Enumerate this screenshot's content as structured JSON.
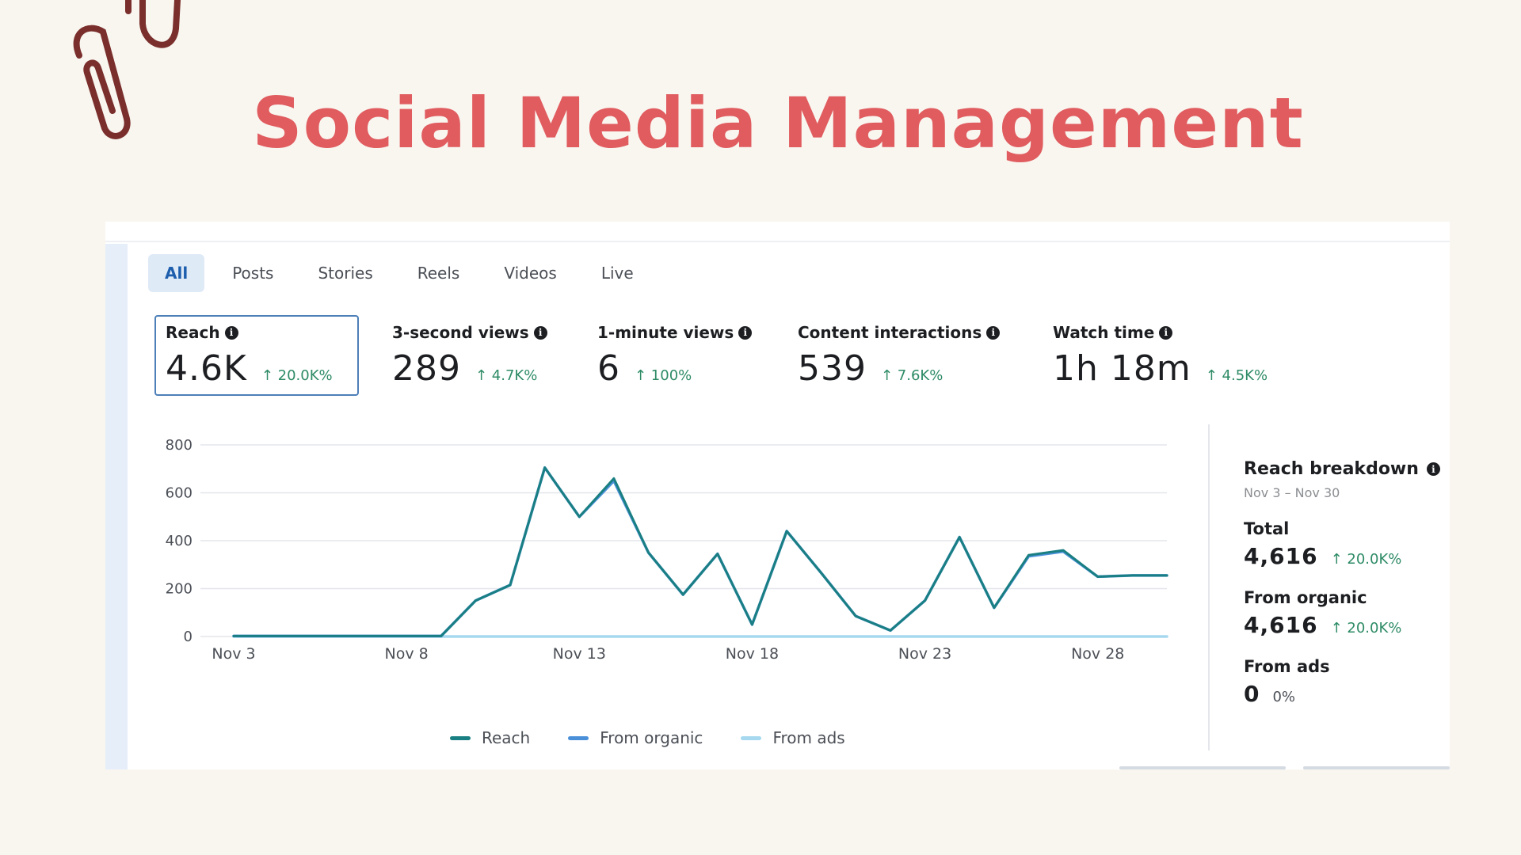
{
  "page": {
    "title": "Social Media Management"
  },
  "tabs": [
    "All",
    "Posts",
    "Stories",
    "Reels",
    "Videos",
    "Live"
  ],
  "active_tab": "All",
  "metrics": [
    {
      "label": "Reach",
      "value": "4.6K",
      "change": "↑ 20.0K%"
    },
    {
      "label": "3-second views",
      "value": "289",
      "change": "↑ 4.7K%"
    },
    {
      "label": "1-minute views",
      "value": "6",
      "change": "↑ 100%"
    },
    {
      "label": "Content interactions",
      "value": "539",
      "change": "↑ 7.6K%"
    },
    {
      "label": "Watch time",
      "value": "1h 18m",
      "change": "↑ 4.5K%"
    }
  ],
  "chart_data": {
    "type": "line",
    "title": "",
    "xlabel": "",
    "ylabel": "",
    "x": [
      "Nov 3",
      "Nov 4",
      "Nov 5",
      "Nov 6",
      "Nov 7",
      "Nov 8",
      "Nov 9",
      "Nov 10",
      "Nov 11",
      "Nov 12",
      "Nov 13",
      "Nov 14",
      "Nov 15",
      "Nov 16",
      "Nov 17",
      "Nov 18",
      "Nov 19",
      "Nov 20",
      "Nov 21",
      "Nov 22",
      "Nov 23",
      "Nov 24",
      "Nov 25",
      "Nov 26",
      "Nov 27",
      "Nov 28",
      "Nov 29",
      "Nov 30"
    ],
    "x_tick_labels": [
      "Nov 3",
      "Nov 8",
      "Nov 13",
      "Nov 18",
      "Nov 23",
      "Nov 28"
    ],
    "y_ticks": [
      0,
      200,
      400,
      600,
      800
    ],
    "ylim": [
      0,
      800
    ],
    "series": [
      {
        "name": "Reach",
        "color": "#1a7f82",
        "values": [
          2,
          2,
          2,
          2,
          2,
          2,
          2,
          150,
          215,
          705,
          500,
          660,
          350,
          175,
          345,
          50,
          440,
          265,
          85,
          25,
          150,
          415,
          120,
          340,
          360,
          250,
          255,
          255
        ]
      },
      {
        "name": "From organic",
        "color": "#4a90d9",
        "values": [
          2,
          2,
          2,
          2,
          2,
          2,
          2,
          150,
          215,
          705,
          500,
          650,
          350,
          175,
          345,
          50,
          440,
          265,
          85,
          25,
          150,
          415,
          120,
          335,
          355,
          250,
          255,
          255
        ]
      },
      {
        "name": "From ads",
        "color": "#a6d8ef",
        "values": [
          0,
          0,
          0,
          0,
          0,
          0,
          0,
          0,
          0,
          0,
          0,
          0,
          0,
          0,
          0,
          0,
          0,
          0,
          0,
          0,
          0,
          0,
          0,
          0,
          0,
          0,
          0,
          0
        ]
      }
    ],
    "legend": [
      "Reach",
      "From organic",
      "From ads"
    ],
    "legend_position": "bottom"
  },
  "breakdown": {
    "title": "Reach breakdown",
    "date_range": "Nov 3 – Nov 30",
    "items": [
      {
        "label": "Total",
        "value": "4,616",
        "change": "↑ 20.0K%"
      },
      {
        "label": "From organic",
        "value": "4,616",
        "change": "↑ 20.0K%"
      },
      {
        "label": "From ads",
        "value": "0",
        "change": "0%"
      }
    ]
  },
  "icons": {
    "info": "info-icon",
    "decoration": "paperclip-icon"
  }
}
